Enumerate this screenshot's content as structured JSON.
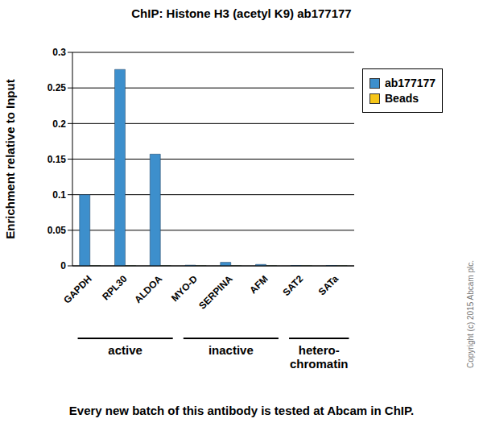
{
  "chart_data": {
    "type": "bar",
    "title": "ChIP: Histone H3 (acetyl K9) ab177177",
    "y_label": "Enrichment relative to Input",
    "categories": [
      "GAPDH",
      "RPL30",
      "ALDOA",
      "MYO-D",
      "SERPINA",
      "AFM",
      "SAT2",
      "SATa"
    ],
    "series": [
      {
        "name": "ab177177",
        "color": "#3d8fcc",
        "values": [
          0.1,
          0.276,
          0.157,
          0.001,
          0.005,
          0.002,
          0.0005,
          0.0005
        ]
      },
      {
        "name": "Beads",
        "color": "#f5c518",
        "values": [
          0.0005,
          0.0005,
          0.0005,
          0.0005,
          0.0005,
          0.0005,
          0.0005,
          0.0005
        ]
      }
    ],
    "ylim": [
      0,
      0.3
    ],
    "yticks": [
      0,
      0.05,
      0.1,
      0.15,
      0.2,
      0.25,
      0.3
    ],
    "grid": true,
    "legend": "right",
    "groups": [
      {
        "label": "active",
        "categories": [
          "GAPDH",
          "RPL30",
          "ALDOA"
        ]
      },
      {
        "label": "inactive",
        "categories": [
          "MYO-D",
          "SERPINA",
          "AFM"
        ]
      },
      {
        "label": "hetero-chromatin",
        "categories": [
          "SAT2",
          "SATa"
        ]
      }
    ],
    "caption": "Every new batch of this antibody is tested at Abcam in ChIP.",
    "copyright": "Copyright (c) 2015 Abcam plc."
  }
}
